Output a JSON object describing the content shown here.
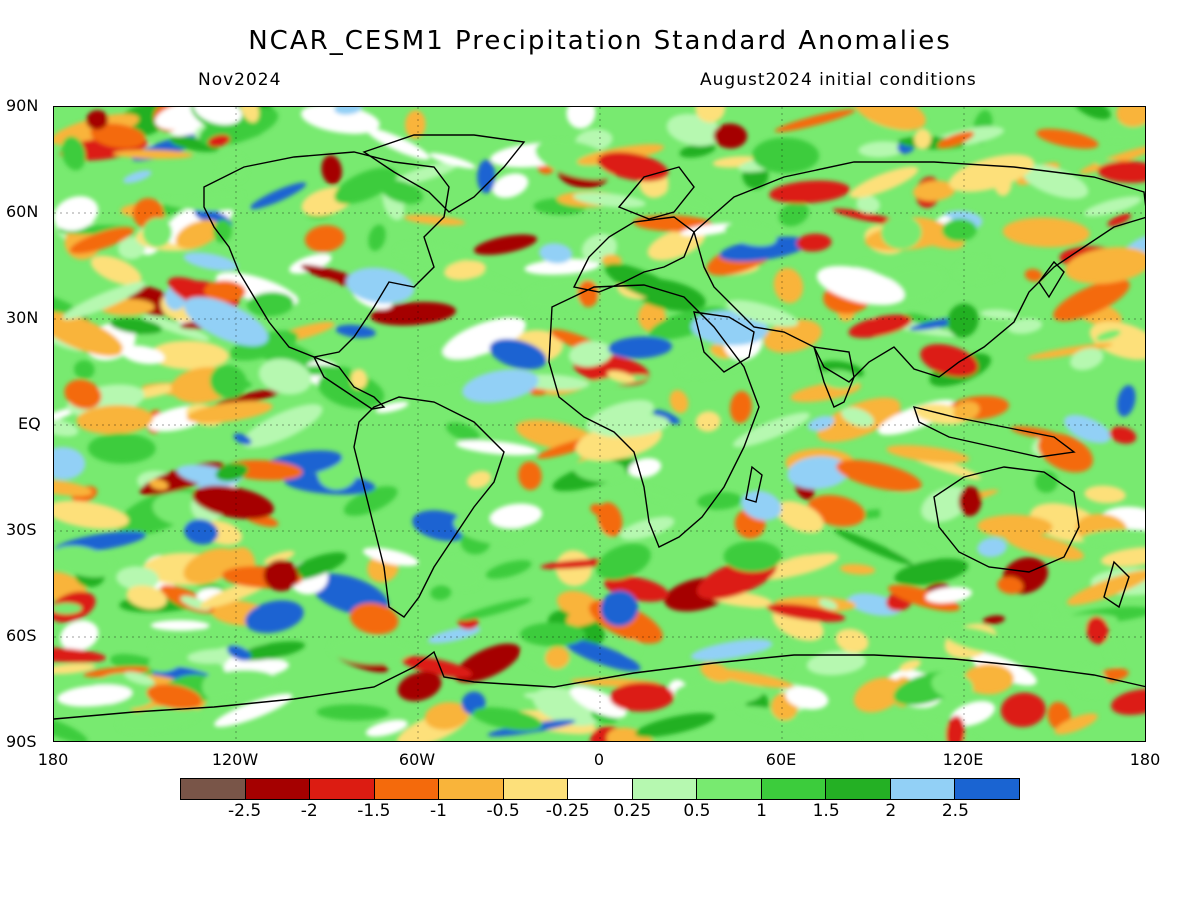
{
  "title": "NCAR_CESM1 Precipitation Standard Anomalies",
  "subtitle_left": "Nov2024",
  "subtitle_right": "August2024 initial conditions",
  "lat_labels": [
    "90N",
    "60N",
    "30N",
    "EQ",
    "30S",
    "60S",
    "90S"
  ],
  "lon_labels": [
    "180",
    "120W",
    "60W",
    "0",
    "60E",
    "120E",
    "180"
  ],
  "colorbar": {
    "colors": [
      "#795548",
      "#a50000",
      "#dc1c12",
      "#f46a0c",
      "#f9b43a",
      "#fde07a",
      "#ffffff",
      "#b6f8b0",
      "#78ea70",
      "#3ccc3c",
      "#24b024",
      "#92d0f6",
      "#1a64d2"
    ],
    "labels": [
      "-2.5",
      "-2",
      "-1.5",
      "-1",
      "-0.5",
      "-0.25",
      "0.25",
      "0.5",
      "1",
      "1.5",
      "2",
      "2.5"
    ]
  }
}
